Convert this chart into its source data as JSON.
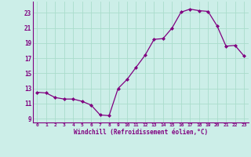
{
  "x": [
    0,
    1,
    2,
    3,
    4,
    5,
    6,
    7,
    8,
    9,
    10,
    11,
    12,
    13,
    14,
    15,
    16,
    17,
    18,
    19,
    20,
    21,
    22,
    23
  ],
  "y": [
    12.5,
    12.4,
    11.8,
    11.6,
    11.6,
    11.3,
    10.8,
    9.5,
    9.4,
    13.0,
    14.2,
    15.8,
    17.4,
    19.5,
    19.6,
    21.0,
    23.1,
    23.5,
    23.3,
    23.2,
    21.3,
    18.6,
    18.7,
    17.3
  ],
  "line_color": "#800080",
  "marker": "D",
  "marker_size": 2.0,
  "bg_color": "#cceee8",
  "grid_color": "#aaddcc",
  "xlabel": "Windchill (Refroidissement éolien,°C)",
  "xlabel_color": "#800080",
  "tick_color": "#800080",
  "spine_color": "#800080",
  "ylim": [
    8.5,
    24.5
  ],
  "yticks": [
    9,
    11,
    13,
    15,
    17,
    19,
    21,
    23
  ],
  "xlim": [
    -0.5,
    23.5
  ],
  "xticks": [
    0,
    1,
    2,
    3,
    4,
    5,
    6,
    7,
    8,
    9,
    10,
    11,
    12,
    13,
    14,
    15,
    16,
    17,
    18,
    19,
    20,
    21,
    22,
    23
  ]
}
